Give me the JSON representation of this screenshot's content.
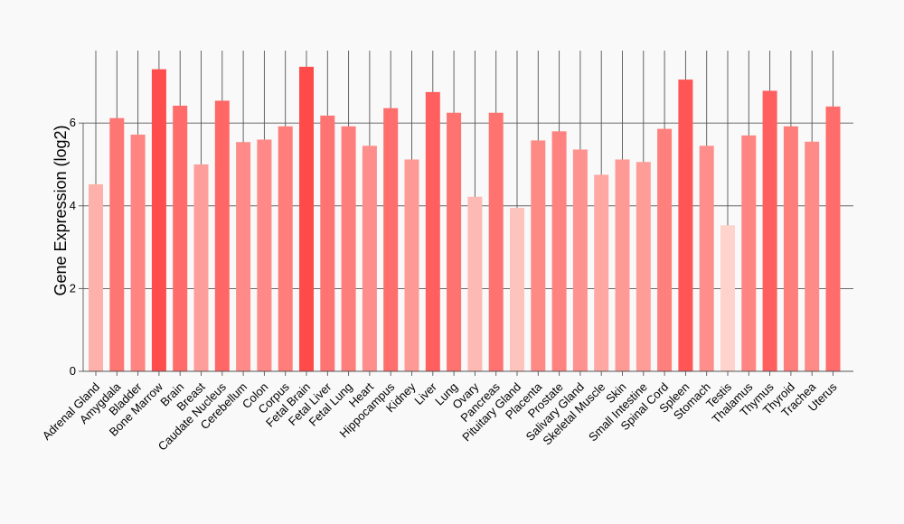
{
  "chart_data": {
    "type": "bar",
    "title": "",
    "xlabel": "",
    "ylabel": "Gene Expression (log2)",
    "ylim": [
      0,
      7.75
    ],
    "yticks": [
      0,
      2,
      4,
      6
    ],
    "grid": true,
    "legend": "none",
    "categories": [
      "Adrenal Gland",
      "Amygdala",
      "Bladder",
      "Bone Marrow",
      "Brain",
      "Breast",
      "Caudate Nucleus",
      "Cerebellum",
      "Colon",
      "Corpus",
      "Fetal Brain",
      "Fetal Liver",
      "Fetal Lung",
      "Heart",
      "Hippocampus",
      "Kidney",
      "Liver",
      "Lung",
      "Ovary",
      "Pancreas",
      "Pituitary Gland",
      "Placenta",
      "Prostate",
      "Salivary Gland",
      "Skeletal Muscle",
      "Skin",
      "Small Intestine",
      "Spinal Cord",
      "Spleen",
      "Stomach",
      "Testis",
      "Thalamus",
      "Thymus",
      "Thyroid",
      "Trachea",
      "Uterus"
    ],
    "values": [
      4.52,
      6.12,
      5.72,
      7.3,
      6.42,
      5.0,
      6.54,
      5.54,
      5.6,
      5.92,
      7.36,
      6.18,
      5.92,
      5.45,
      6.36,
      5.12,
      6.75,
      6.25,
      4.22,
      6.25,
      3.95,
      5.58,
      5.8,
      5.36,
      4.75,
      5.12,
      5.06,
      5.86,
      7.05,
      5.45,
      3.53,
      5.7,
      6.78,
      5.92,
      5.55,
      6.4
    ],
    "color_range": [
      "#fdd3cc",
      "#ff4a4a"
    ]
  }
}
